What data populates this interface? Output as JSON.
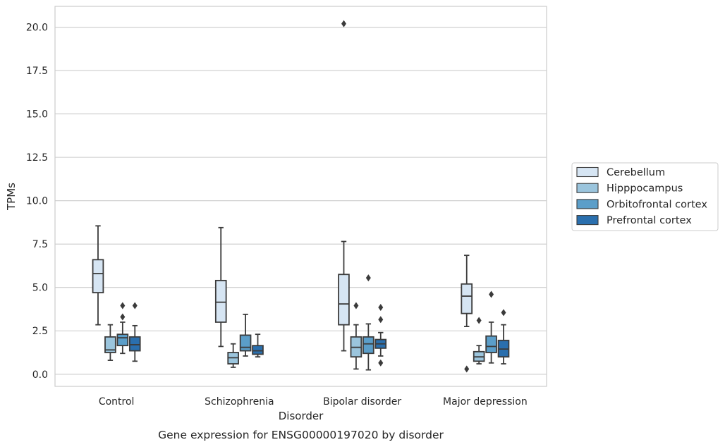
{
  "caption": "Gene expression for ENSG00000197020 by disorder",
  "chart_data": {
    "type": "box",
    "xlabel": "Disorder",
    "ylabel": "TPMs",
    "ylim": [
      -0.7,
      21.2
    ],
    "yticks": [
      "0.0",
      "2.5",
      "5.0",
      "7.5",
      "10.0",
      "12.5",
      "15.0",
      "17.5",
      "20.0"
    ],
    "grid": "horizontal",
    "legend_position": "right",
    "categories": [
      "Control",
      "Schizophrenia",
      "Bipolar disorder",
      "Major depression"
    ],
    "series": [
      {
        "name": "Cerebellum",
        "color": "#d6e5f3",
        "boxes": [
          {
            "whislo": 2.85,
            "q1": 4.7,
            "med": 5.8,
            "q3": 6.6,
            "whishi": 8.55,
            "fliers": []
          },
          {
            "whislo": 1.6,
            "q1": 3.0,
            "med": 4.15,
            "q3": 5.4,
            "whishi": 8.45,
            "fliers": []
          },
          {
            "whislo": 1.35,
            "q1": 2.85,
            "med": 4.05,
            "q3": 5.75,
            "whishi": 7.65,
            "fliers": [
              20.2
            ]
          },
          {
            "whislo": 2.75,
            "q1": 3.5,
            "med": 4.5,
            "q3": 5.2,
            "whishi": 6.85,
            "fliers": [
              0.3
            ]
          }
        ]
      },
      {
        "name": "Hipppocampus",
        "color": "#9bc5dd",
        "boxes": [
          {
            "whislo": 0.8,
            "q1": 1.25,
            "med": 1.4,
            "q3": 2.15,
            "whishi": 2.85,
            "fliers": []
          },
          {
            "whislo": 0.4,
            "q1": 0.6,
            "med": 0.95,
            "q3": 1.25,
            "whishi": 1.75,
            "fliers": []
          },
          {
            "whislo": 0.3,
            "q1": 1.0,
            "med": 1.55,
            "q3": 2.15,
            "whishi": 2.85,
            "fliers": [
              3.95
            ]
          },
          {
            "whislo": 0.6,
            "q1": 0.75,
            "med": 1.0,
            "q3": 1.3,
            "whishi": 1.65,
            "fliers": [
              3.1
            ]
          }
        ]
      },
      {
        "name": "Orbitofrontal cortex",
        "color": "#5b9ec9",
        "boxes": [
          {
            "whislo": 1.2,
            "q1": 1.65,
            "med": 2.1,
            "q3": 2.3,
            "whishi": 3.0,
            "fliers": [
              3.3,
              3.95
            ]
          },
          {
            "whislo": 1.05,
            "q1": 1.35,
            "med": 1.55,
            "q3": 2.25,
            "whishi": 3.45,
            "fliers": []
          },
          {
            "whislo": 0.25,
            "q1": 1.2,
            "med": 1.75,
            "q3": 2.15,
            "whishi": 2.9,
            "fliers": [
              5.55
            ]
          },
          {
            "whislo": 0.65,
            "q1": 1.25,
            "med": 1.6,
            "q3": 2.2,
            "whishi": 3.0,
            "fliers": [
              4.6
            ]
          }
        ]
      },
      {
        "name": "Prefrontal cortex",
        "color": "#2a6fae",
        "boxes": [
          {
            "whislo": 0.75,
            "q1": 1.35,
            "med": 1.7,
            "q3": 2.15,
            "whishi": 2.8,
            "fliers": [
              3.95
            ]
          },
          {
            "whislo": 1.0,
            "q1": 1.15,
            "med": 1.35,
            "q3": 1.65,
            "whishi": 2.3,
            "fliers": []
          },
          {
            "whislo": 1.05,
            "q1": 1.5,
            "med": 1.75,
            "q3": 2.0,
            "whishi": 2.4,
            "fliers": [
              0.65,
              3.15,
              3.85
            ]
          },
          {
            "whislo": 0.6,
            "q1": 1.0,
            "med": 1.45,
            "q3": 1.95,
            "whishi": 2.85,
            "fliers": [
              3.55
            ]
          }
        ]
      }
    ]
  }
}
